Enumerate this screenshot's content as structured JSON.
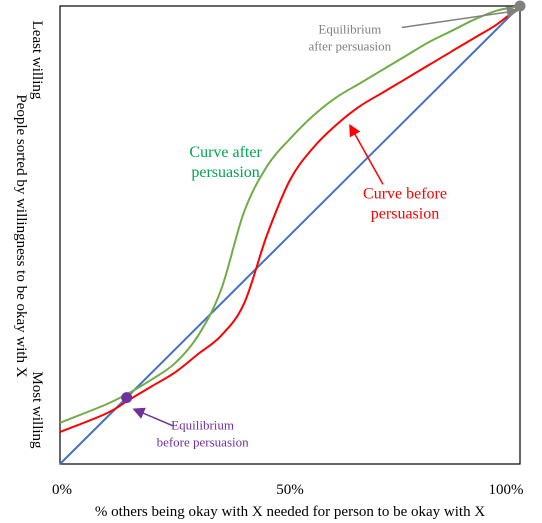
{
  "chart_data": {
    "type": "line",
    "xlabel": "% others being okay with X needed for person to be okay with X",
    "ylabel": "People sorted by willingness to be okay with X",
    "y_top_label": "Least willing",
    "y_bottom_label": "Most willing",
    "x_ticks": [
      "0%",
      "50%",
      "100%"
    ],
    "xlim": [
      0,
      100
    ],
    "ylim": [
      0,
      100
    ],
    "grid": false,
    "series": [
      {
        "name": "Curve before persuasion",
        "color": "#ff0000",
        "x": [
          0,
          10,
          15,
          20,
          25,
          30,
          35,
          40,
          45,
          50,
          55,
          60,
          65,
          70,
          75,
          80,
          85,
          90,
          95,
          100
        ],
        "y": [
          7,
          11,
          14,
          17,
          20,
          24,
          28,
          35,
          50,
          62,
          69,
          74,
          78,
          81,
          84,
          87,
          90,
          93,
          96,
          100
        ]
      },
      {
        "name": "Curve after persuasion",
        "color": "#70ad47",
        "x": [
          0,
          10,
          15,
          20,
          25,
          30,
          35,
          40,
          45,
          50,
          55,
          60,
          65,
          70,
          75,
          80,
          85,
          90,
          95,
          100
        ],
        "y": [
          9,
          13,
          15.5,
          18.5,
          22,
          28,
          38,
          55,
          65,
          71,
          76,
          80,
          83,
          86,
          89,
          92,
          94.5,
          97,
          99,
          100
        ]
      },
      {
        "name": "",
        "color": "#4472c4",
        "x": [
          0,
          100
        ],
        "y": [
          0,
          100
        ]
      }
    ],
    "annotations": [
      {
        "id": "after_label",
        "lines": [
          "Curve after",
          "persuasion"
        ],
        "color": "#00a550",
        "x": 36,
        "y": 67
      },
      {
        "id": "before_label",
        "lines": [
          "Curve before",
          "persuasion"
        ],
        "color": "#ff0000",
        "x": 75,
        "y": 58,
        "arrow_to": [
          63,
          74
        ]
      },
      {
        "id": "eq_after",
        "lines": [
          "Equilibrium",
          "after persuasion"
        ],
        "color": "#808080",
        "x": 63,
        "y": 94,
        "arrow_to": [
          99.5,
          99
        ]
      },
      {
        "id": "eq_before",
        "lines": [
          "Equilibrium",
          "before persuasion"
        ],
        "color": "#7030a0",
        "x": 31,
        "y": 7.5,
        "arrow_to": [
          16,
          12
        ]
      }
    ],
    "points": [
      {
        "name": "Equilibrium before persuasion",
        "x": 14.5,
        "y": 14.5,
        "color": "#7030a0"
      },
      {
        "name": "Equilibrium after persuasion",
        "x": 100,
        "y": 100,
        "color": "#808080"
      }
    ]
  }
}
